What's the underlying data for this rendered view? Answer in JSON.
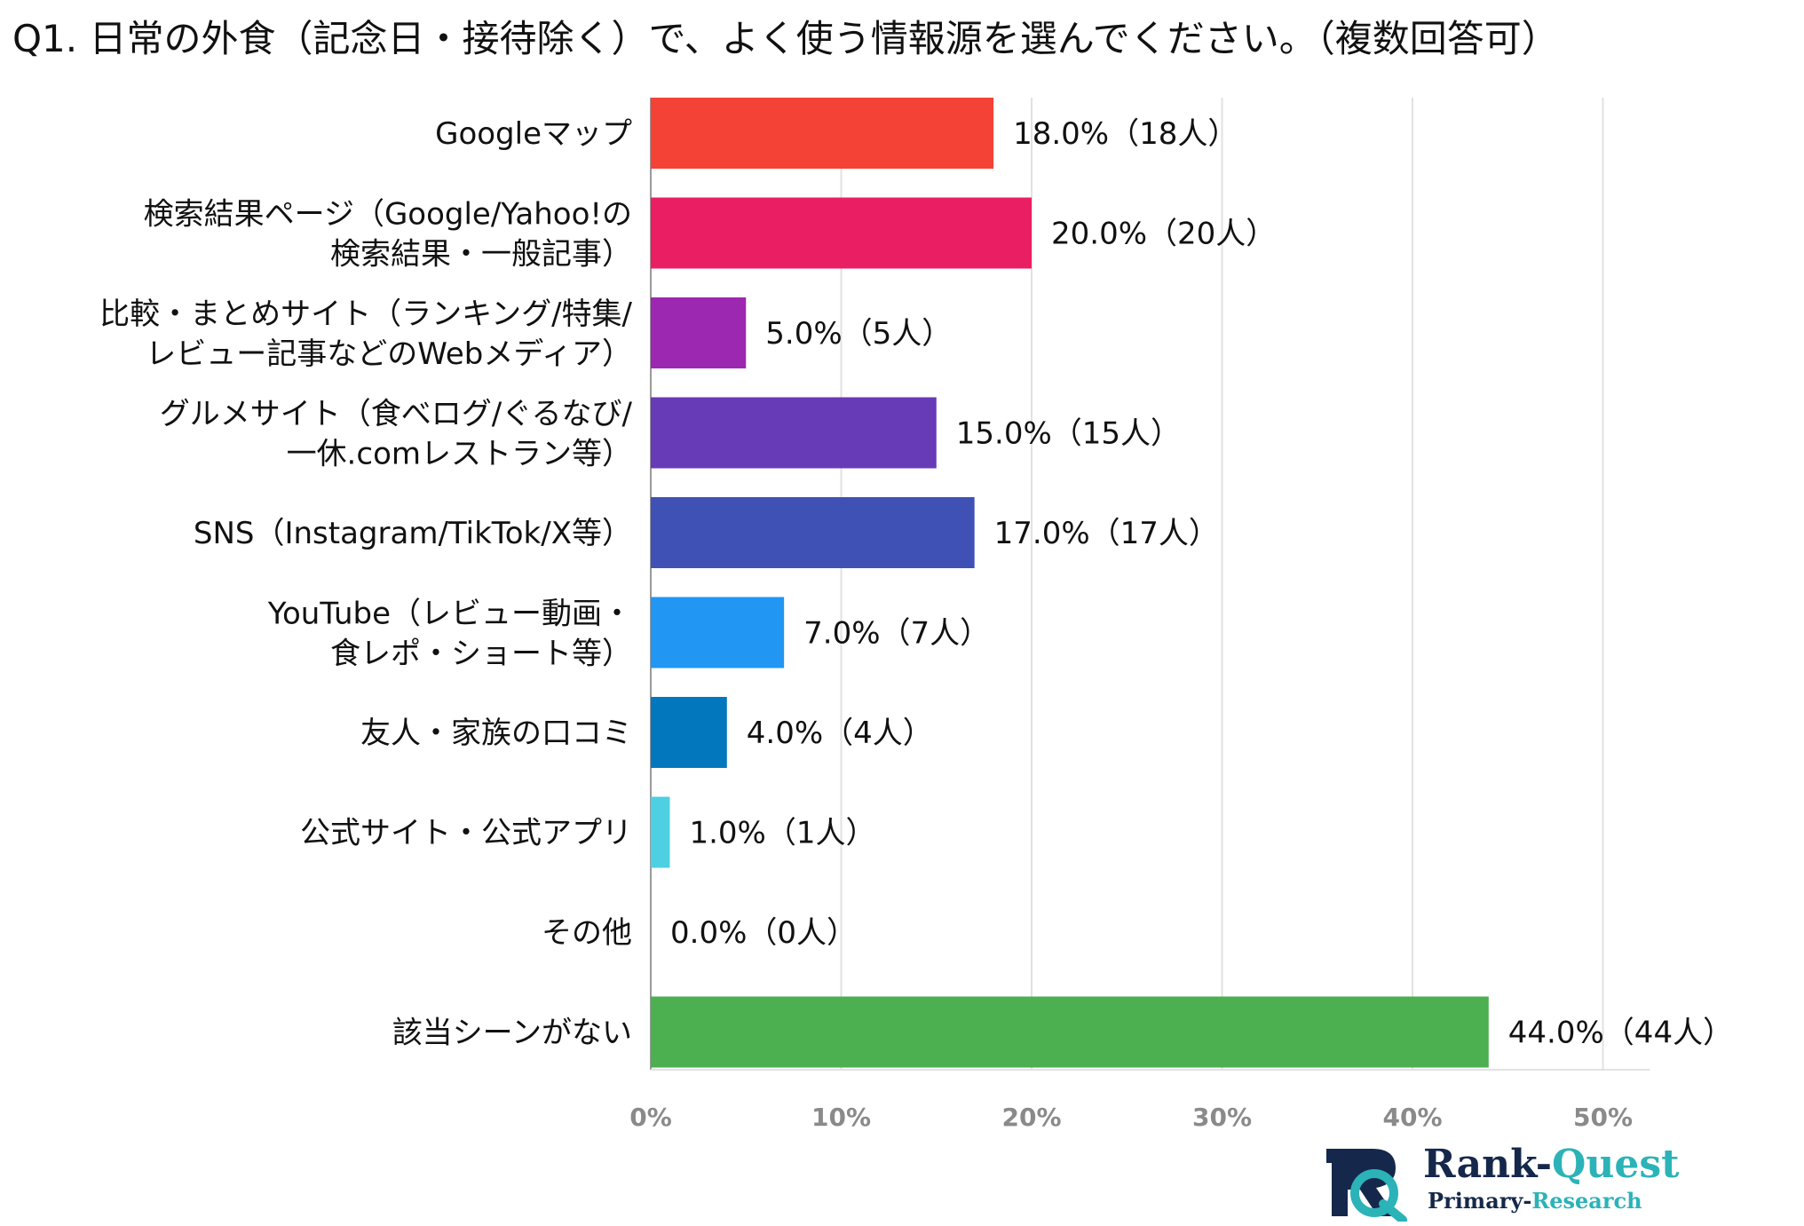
{
  "chart_data": {
    "type": "bar",
    "orientation": "horizontal",
    "title": "Q1. 日常の外食（記念日・接待除く）で、よく使う情報源を選んでください。（複数回答可）",
    "xlabel": "",
    "ylabel": "",
    "xlim": [
      0,
      52
    ],
    "ticks": [
      0,
      10,
      20,
      30,
      40,
      50
    ],
    "tick_labels": [
      "0%",
      "10%",
      "20%",
      "30%",
      "40%",
      "50%"
    ],
    "grid": true,
    "categories": [
      [
        "Googleマップ"
      ],
      [
        "検索結果ページ（Google/Yahoo!の",
        "検索結果・一般記事）"
      ],
      [
        "比較・まとめサイト（ランキング/特集/",
        "レビュー記事などのWebメディア）"
      ],
      [
        "グルメサイト（食べログ/ぐるなび/",
        "一休.comレストラン等）"
      ],
      [
        "SNS（Instagram/TikTok/X等）"
      ],
      [
        "YouTube（レビュー動画・",
        "食レポ・ショート等）"
      ],
      [
        "友人・家族の口コミ"
      ],
      [
        "公式サイト・公式アプリ"
      ],
      [
        "その他"
      ],
      [
        "該当シーンがない"
      ]
    ],
    "values": [
      18.0,
      20.0,
      5.0,
      15.0,
      17.0,
      7.0,
      4.0,
      1.0,
      0.0,
      44.0
    ],
    "value_labels": [
      "18.0%（18人）",
      "20.0%（20人）",
      "5.0%（5人）",
      "15.0%（15人）",
      "17.0%（17人）",
      "7.0%（7人）",
      "4.0%（4人）",
      "1.0%（1人）",
      "0.0%（0人）",
      "44.0%（44人）"
    ],
    "colors": [
      "#f44336",
      "#e91e63",
      "#9c27b0",
      "#673ab7",
      "#3f51b5",
      "#2196f3",
      "#0277bd",
      "#4dd0e1",
      "#9e9e9e",
      "#4caf50"
    ]
  },
  "branding": {
    "name_part1": "Rank-",
    "name_part2": "Quest",
    "sub_part1": "Primary-",
    "sub_part2": "Research",
    "logo_icon": "rq-monogram-icon"
  }
}
